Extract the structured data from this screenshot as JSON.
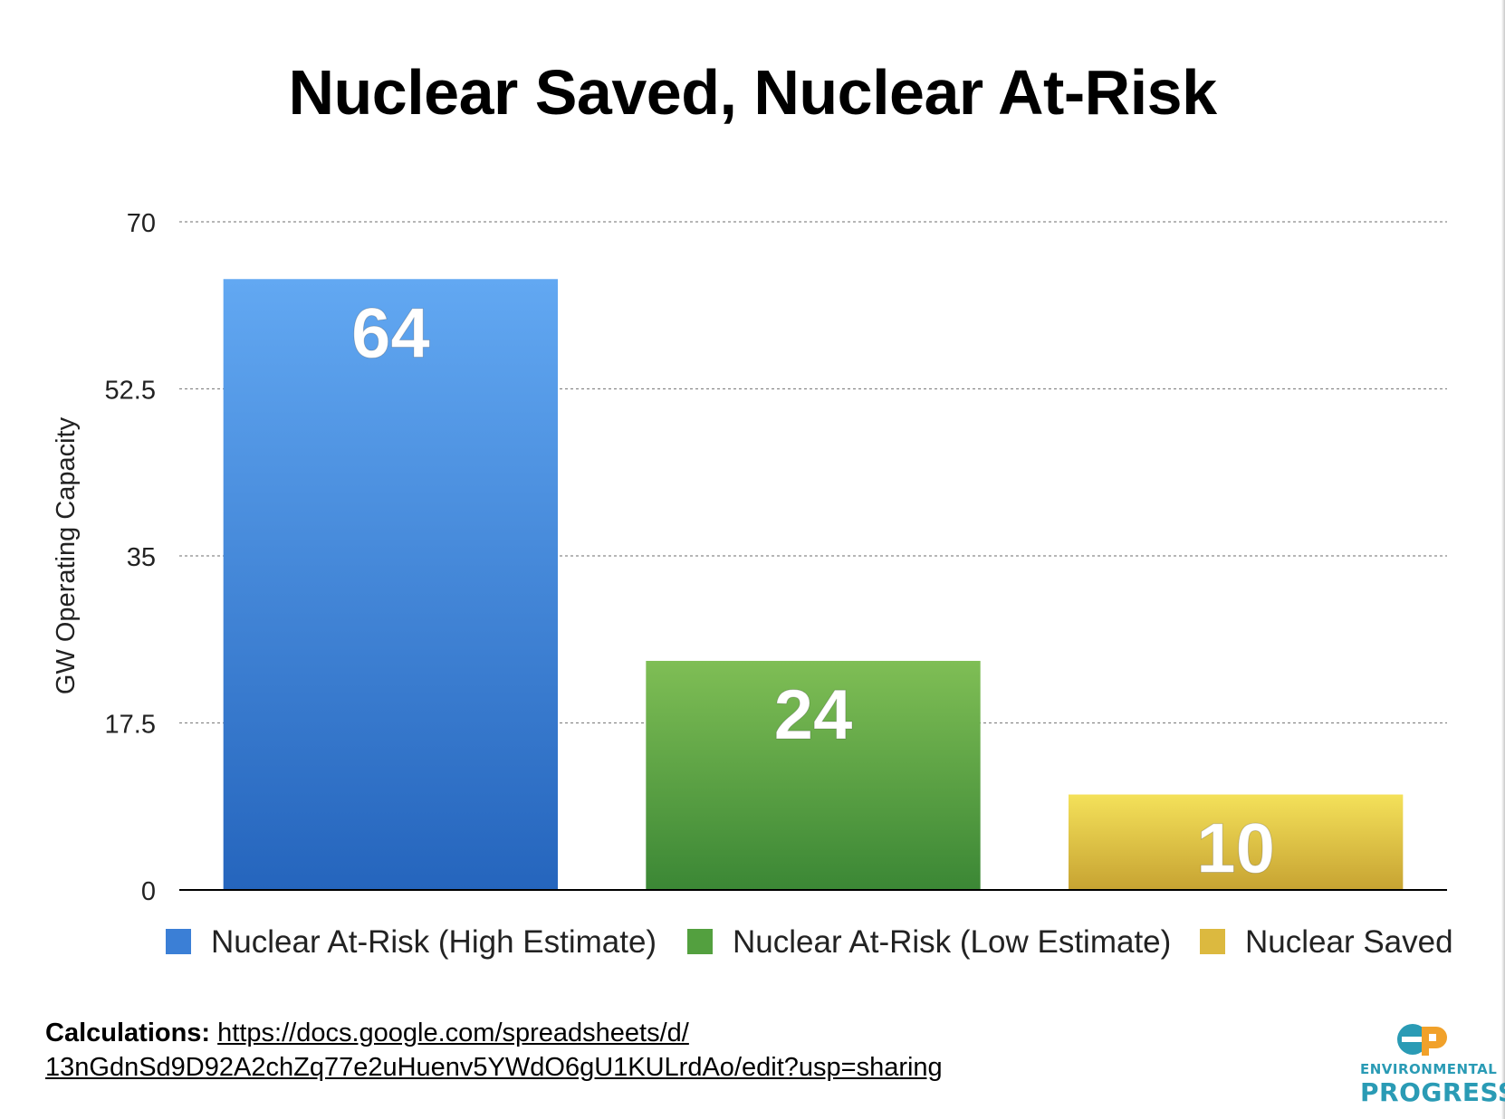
{
  "chart_data": {
    "type": "bar",
    "title": "Nuclear Saved, Nuclear At-Risk",
    "ylabel": "GW Operating Capacity",
    "xlabel": "",
    "ylim": [
      0,
      70
    ],
    "yticks": [
      "0",
      "17.5",
      "35",
      "52.5",
      "70"
    ],
    "ytick_values": [
      0,
      17.5,
      35,
      52.5,
      70
    ],
    "grid": true,
    "legend_position": "bottom",
    "series": [
      {
        "name": "Nuclear At-Risk (High Estimate)",
        "value": 64,
        "label": "64",
        "color_top": "#62a8f2",
        "color_bottom": "#2565bd",
        "legend_color": "#3b7fd6"
      },
      {
        "name": "Nuclear At-Risk (Low Estimate)",
        "value": 24,
        "label": "24",
        "color_top": "#7fbe55",
        "color_bottom": "#3b8735",
        "legend_color": "#53a03f"
      },
      {
        "name": "Nuclear Saved",
        "value": 10,
        "label": "10",
        "color_top": "#f4e15a",
        "color_bottom": "#c7a332",
        "legend_color": "#dcb93f"
      }
    ]
  },
  "footer": {
    "label": "Calculations:",
    "link_line1": "https://docs.google.com/spreadsheets/d/",
    "link_line2": "13nGdnSd9D92A2chZq77e2uHuenv5YWdO6gU1KULrdAo/edit?usp=sharing"
  },
  "logo": {
    "line1": "ENVIRONMENTAL",
    "line2": "PROGRESS",
    "color": "#2a9bb5",
    "accent": "#f1a12a"
  }
}
